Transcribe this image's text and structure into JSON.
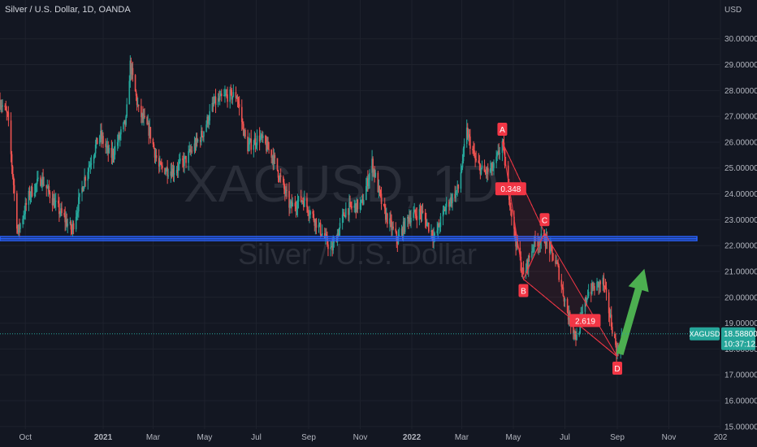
{
  "header": {
    "title": "Silver / U.S. Dollar, 1D, OANDA"
  },
  "watermark": {
    "symbol": "XAGUSD, 1D",
    "name": "Silver / U.S. Dollar"
  },
  "colors": {
    "background": "#131722",
    "up": "#26a69a",
    "down": "#ef5350",
    "support_line": "#2962ff",
    "pattern": "#f23645",
    "arrow": "#4caf50"
  },
  "chart_data": {
    "type": "candlestick",
    "title": "Silver / U.S. Dollar, 1D, OANDA",
    "currency_label": "USD",
    "y_ticks": [
      15,
      16,
      17,
      18,
      19,
      20,
      21,
      22,
      23,
      24,
      25,
      26,
      27,
      28,
      29,
      30
    ],
    "y_tick_labels": [
      "15.00000",
      "16.00000",
      "17.00000",
      "18.00000",
      "19.00000",
      "20.00000",
      "21.00000",
      "22.00000",
      "23.00000",
      "24.00000",
      "25.00000",
      "26.00000",
      "27.00000",
      "28.00000",
      "29.00000",
      "30.00000"
    ],
    "ylim": [
      14.9,
      31.5
    ],
    "x_tick_labels": [
      "Oct",
      "2021",
      "Mar",
      "May",
      "Jul",
      "Sep",
      "Nov",
      "2022",
      "Mar",
      "May",
      "Jul",
      "Sep",
      "Nov",
      "202"
    ],
    "x_range": [
      "2020-09-01",
      "2022-12-31"
    ],
    "x_tick_dates": [
      "2020-10-01",
      "2021-01-01",
      "2021-03-01",
      "2021-05-01",
      "2021-07-01",
      "2021-09-01",
      "2021-11-01",
      "2022-01-01",
      "2022-03-01",
      "2022-05-01",
      "2022-07-01",
      "2022-09-01",
      "2022-11-01",
      "2023-01-01"
    ],
    "price_path": [
      [
        "2020-09-01",
        27.6
      ],
      [
        "2020-09-10",
        27.0
      ],
      [
        "2020-09-22",
        22.5
      ],
      [
        "2020-10-06",
        24.0
      ],
      [
        "2020-10-20",
        24.6
      ],
      [
        "2020-11-05",
        23.6
      ],
      [
        "2020-11-25",
        22.6
      ],
      [
        "2020-12-10",
        24.6
      ],
      [
        "2020-12-28",
        26.3
      ],
      [
        "2021-01-10",
        25.4
      ],
      [
        "2021-01-28",
        26.8
      ],
      [
        "2021-02-02",
        29.0
      ],
      [
        "2021-02-12",
        27.2
      ],
      [
        "2021-02-25",
        26.4
      ],
      [
        "2021-03-08",
        25.0
      ],
      [
        "2021-03-25",
        24.9
      ],
      [
        "2021-04-08",
        25.3
      ],
      [
        "2021-04-28",
        26.3
      ],
      [
        "2021-05-12",
        27.5
      ],
      [
        "2021-05-28",
        27.8
      ],
      [
        "2021-06-08",
        27.8
      ],
      [
        "2021-06-20",
        25.8
      ],
      [
        "2021-07-05",
        26.2
      ],
      [
        "2021-07-20",
        25.5
      ],
      [
        "2021-08-10",
        23.5
      ],
      [
        "2021-08-25",
        23.8
      ],
      [
        "2021-09-10",
        22.9
      ],
      [
        "2021-09-28",
        21.8
      ],
      [
        "2021-10-15",
        23.4
      ],
      [
        "2021-11-03",
        23.6
      ],
      [
        "2021-11-15",
        25.2
      ],
      [
        "2021-11-28",
        23.4
      ],
      [
        "2021-12-15",
        22.2
      ],
      [
        "2021-12-28",
        23.1
      ],
      [
        "2022-01-12",
        23.3
      ],
      [
        "2022-01-28",
        22.3
      ],
      [
        "2022-02-10",
        23.5
      ],
      [
        "2022-02-25",
        24.2
      ],
      [
        "2022-03-07",
        26.4
      ],
      [
        "2022-03-18",
        25.2
      ],
      [
        "2022-03-28",
        24.8
      ],
      [
        "2022-04-08",
        25.0
      ],
      [
        "2022-04-18",
        26.0
      ],
      [
        "2022-05-02",
        22.5
      ],
      [
        "2022-05-13",
        20.8
      ],
      [
        "2022-05-25",
        22.1
      ],
      [
        "2022-06-07",
        22.3
      ],
      [
        "2022-06-22",
        21.2
      ],
      [
        "2022-07-05",
        19.3
      ],
      [
        "2022-07-15",
        18.4
      ],
      [
        "2022-07-28",
        20.2
      ],
      [
        "2022-08-15",
        20.6
      ],
      [
        "2022-08-25",
        19.0
      ],
      [
        "2022-09-01",
        17.8
      ],
      [
        "2022-09-07",
        18.6
      ]
    ],
    "horizontal_line": {
      "value": 22.27
    },
    "pattern": {
      "points": [
        {
          "label": "A",
          "date": "2022-04-18",
          "value": 26.0
        },
        {
          "label": "B",
          "date": "2022-05-13",
          "value": 20.7
        },
        {
          "label": "C",
          "date": "2022-06-07",
          "value": 22.5
        },
        {
          "label": "D",
          "date": "2022-09-01",
          "value": 17.7
        }
      ],
      "ratios": [
        {
          "label": "0.348",
          "date": "2022-04-28",
          "value": 24.2
        },
        {
          "label": "2.619",
          "date": "2022-07-25",
          "value": 19.1
        }
      ]
    },
    "arrow": {
      "from": {
        "date": "2022-09-04",
        "value": 17.8
      },
      "to": {
        "date": "2022-10-03",
        "value": 21.1
      }
    },
    "last_price": {
      "symbol": "XAGUSD",
      "value": 18.588,
      "label": "18.58800",
      "countdown": "10:37:12"
    }
  }
}
